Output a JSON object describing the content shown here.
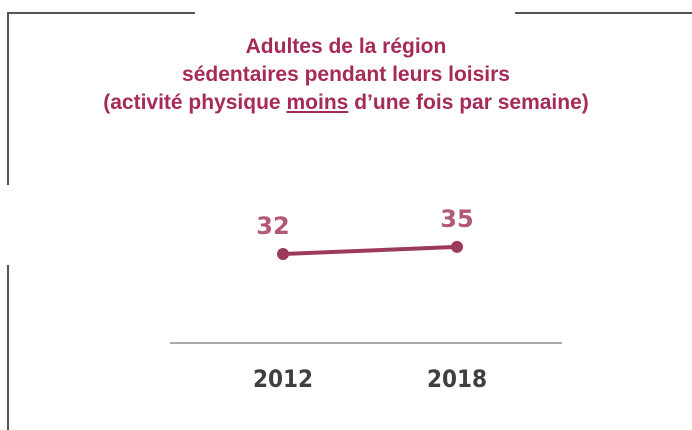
{
  "chart_data": {
    "type": "line",
    "title": [
      "Adultes de la région",
      "sédentaires pendant leurs loisirs",
      [
        "(activité physique",
        "moins",
        "d’une fois par semaine)"
      ]
    ],
    "categories": [
      "2012",
      "2018"
    ],
    "series": [
      {
        "color": "#9b3a5c",
        "values": [
          32,
          35
        ]
      }
    ],
    "ylim": [
      0,
      40
    ],
    "label_color": "#b25878",
    "title_color": "#a52a57"
  }
}
